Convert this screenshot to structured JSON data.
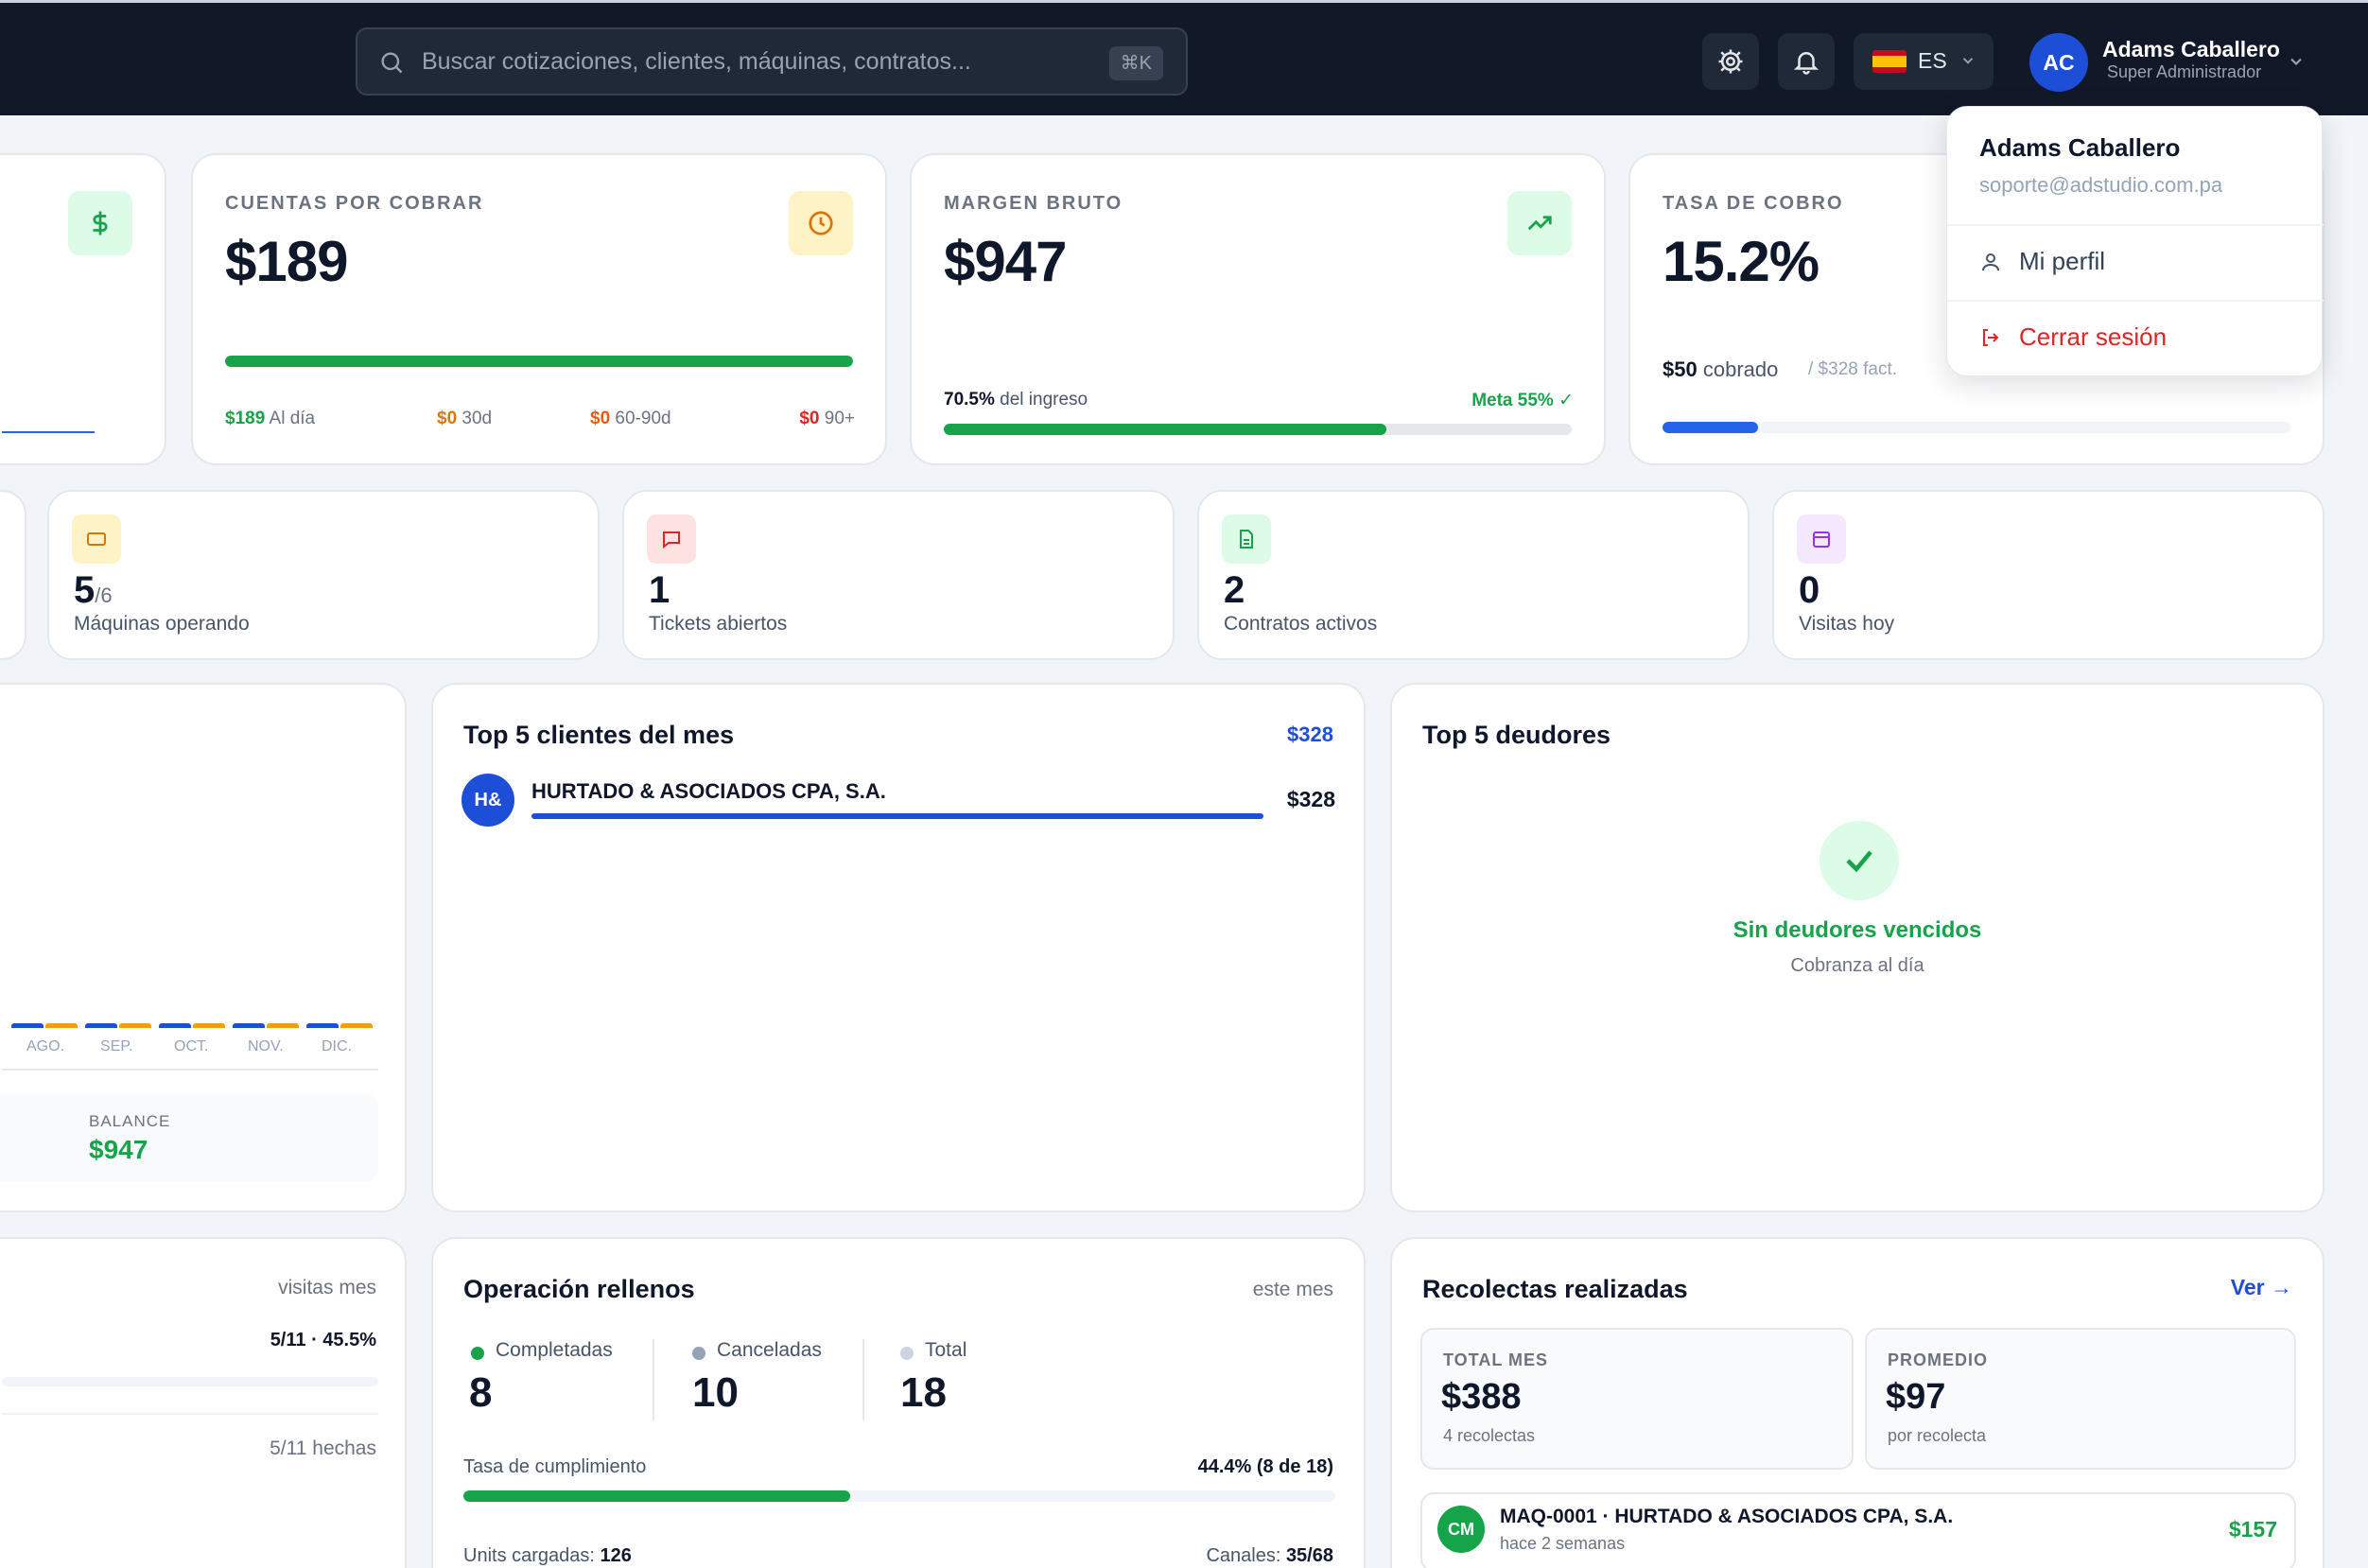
{
  "header": {
    "search_placeholder": "Buscar cotizaciones, clientes, máquinas, contratos...",
    "search_shortcut": "⌘K",
    "lang_code": "ES",
    "user_initials": "AC",
    "user_name": "Adams Caballero",
    "user_role": "Super Administrador"
  },
  "user_menu": {
    "name": "Adams Caballero",
    "email": "soporte@adstudio.com.pa",
    "profile_label": "Mi perfil",
    "logout_label": "Cerrar sesión"
  },
  "kpis": {
    "receivables": {
      "label": "CUENTAS POR COBRAR",
      "value": "$189",
      "progress": 1.0,
      "aging": [
        {
          "amount": "$189",
          "label": "Al día",
          "color": "#16a34a"
        },
        {
          "amount": "$0",
          "label": "30d",
          "color": "#d97706"
        },
        {
          "amount": "$0",
          "label": "60-90d",
          "color": "#ea580c"
        },
        {
          "amount": "$0",
          "label": "90+",
          "color": "#dc2626"
        }
      ]
    },
    "gross_margin": {
      "label": "MARGEN BRUTO",
      "value": "$947",
      "pct": "70.5%",
      "pct_suffix": "del ingreso",
      "goal": "Meta 55% ✓",
      "progress": 0.705
    },
    "collection_rate": {
      "label": "TASA DE COBRO",
      "value": "15.2%",
      "collected": "$50",
      "collected_suffix": "cobrado",
      "invoiced": "/ $328 fact.",
      "progress": 0.152
    }
  },
  "stats": [
    {
      "value": "5",
      "suffix": "/6",
      "label": "Máquinas operando",
      "icon": "monitor-icon",
      "bg": "#fef3c7",
      "fg": "#d97706"
    },
    {
      "value": "1",
      "suffix": "",
      "label": "Tickets abiertos",
      "icon": "message-icon",
      "bg": "#fee2e2",
      "fg": "#dc2626"
    },
    {
      "value": "2",
      "suffix": "",
      "label": "Contratos activos",
      "icon": "document-icon",
      "bg": "#dcfce7",
      "fg": "#16a34a"
    },
    {
      "value": "0",
      "suffix": "",
      "label": "Visitas hoy",
      "icon": "calendar-icon",
      "bg": "#f3e8ff",
      "fg": "#9333ea"
    }
  ],
  "chart_partial": {
    "months": [
      "AGO.",
      "SEP.",
      "OCT.",
      "NOV.",
      "DIC."
    ],
    "balance_label": "BALANCE",
    "balance_value": "$947"
  },
  "top_clients": {
    "title": "Top 5 clientes del mes",
    "total": "$328",
    "items": [
      {
        "initials": "H&",
        "name": "HURTADO & ASOCIADOS CPA, S.A.",
        "amount": "$328",
        "share": 1.0
      }
    ]
  },
  "top_debtors": {
    "title": "Top 5 deudores",
    "empty_title": "Sin deudores vencidos",
    "empty_sub": "Cobranza al día"
  },
  "visits_partial": {
    "header": "visitas mes",
    "stat": "5/11 · 45.5%",
    "done": "5/11 hechas"
  },
  "refills": {
    "title": "Operación rellenos",
    "period": "este mes",
    "completed_label": "Completadas",
    "completed": "8",
    "cancelled_label": "Canceladas",
    "cancelled": "10",
    "total_label": "Total",
    "total": "18",
    "rate_label": "Tasa de cumplimiento",
    "rate_value": "44.4% (8 de 18)",
    "rate": 0.444,
    "units_label": "Units cargadas:",
    "units": "126",
    "channels_label": "Canales:",
    "channels": "35/68"
  },
  "collections": {
    "title": "Recolectas realizadas",
    "view_link": "Ver →",
    "total_label": "TOTAL MES",
    "total_value": "$388",
    "total_sub": "4 recolectas",
    "avg_label": "PROMEDIO",
    "avg_value": "$97",
    "avg_sub": "por recolecta",
    "items": [
      {
        "initials": "CM",
        "title": "MAQ-0001 · HURTADO & ASOCIADOS CPA, S.A.",
        "time": "hace 2 semanas",
        "amount": "$157"
      }
    ]
  }
}
